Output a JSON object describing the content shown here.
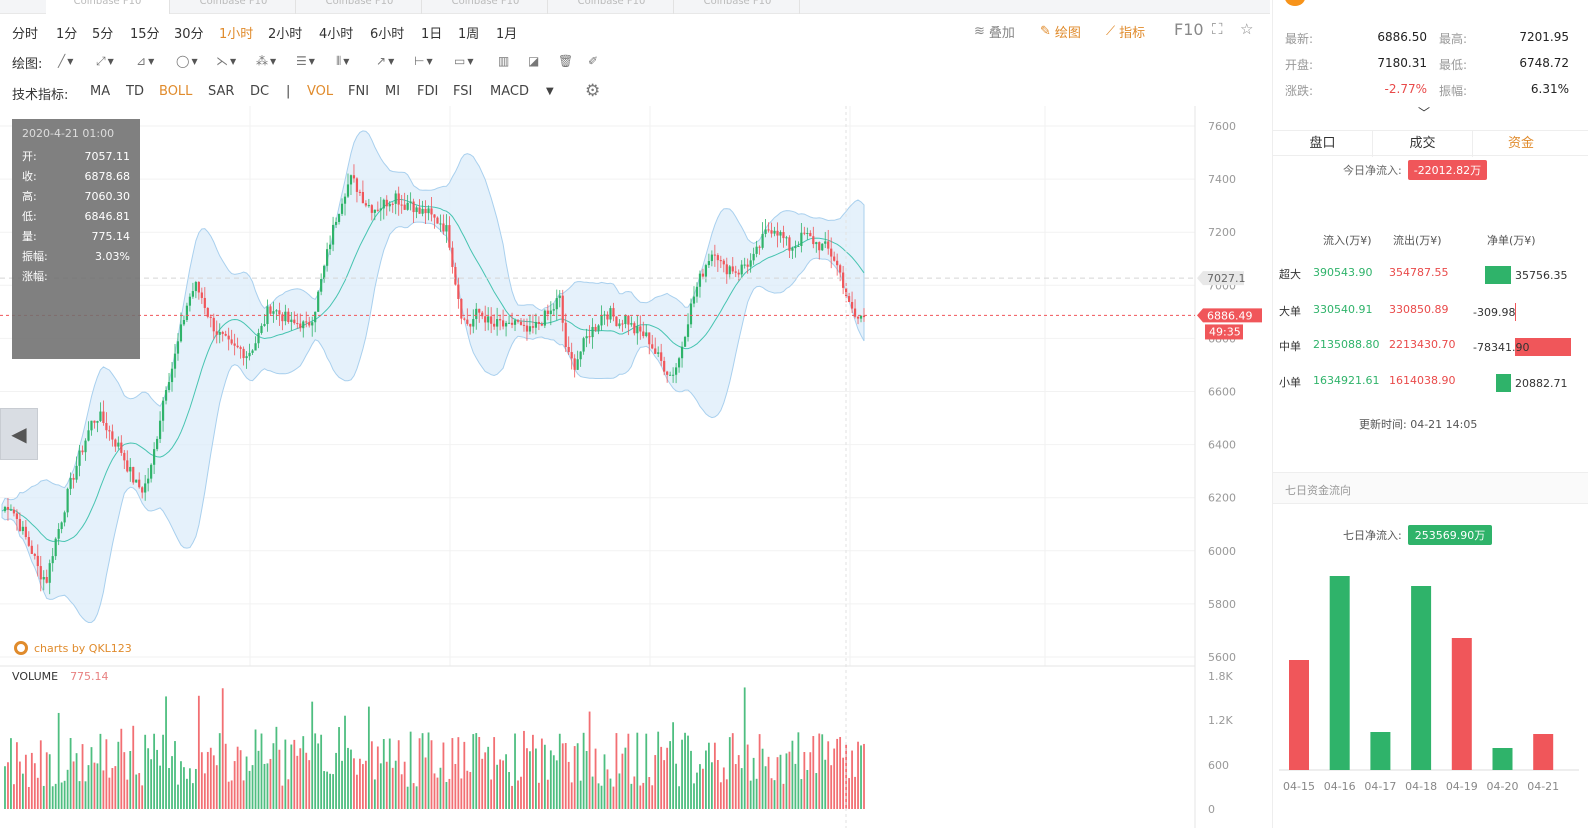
{
  "tabs": [
    {
      "label": "Coinbase F10"
    },
    {
      "label": "Coinbase F10"
    },
    {
      "label": "Coinbase F10"
    },
    {
      "label": "Coinbase F10"
    },
    {
      "label": "Coinbase F10"
    },
    {
      "label": "Coinbase F10"
    }
  ],
  "intervals": [
    {
      "label": "分时"
    },
    {
      "label": "1分"
    },
    {
      "label": "5分"
    },
    {
      "label": "15分"
    },
    {
      "label": "30分"
    },
    {
      "label": "1小时"
    },
    {
      "label": "2小时"
    },
    {
      "label": "4小时"
    },
    {
      "label": "6小时"
    },
    {
      "label": "1日"
    },
    {
      "label": "1周"
    },
    {
      "label": "1月"
    }
  ],
  "active_interval": "1小时",
  "top_right": {
    "overlay": "叠加",
    "draw": "绘图",
    "indicator": "指标",
    "f10": "F10"
  },
  "draw_label": "绘图:",
  "indicators_label": "技术指标:",
  "indicators": [
    {
      "label": "MA"
    },
    {
      "label": "TD"
    },
    {
      "label": "BOLL"
    },
    {
      "label": "SAR"
    },
    {
      "label": "DC"
    },
    {
      "label": "|"
    },
    {
      "label": "VOL"
    },
    {
      "label": "FNI"
    },
    {
      "label": "MI"
    },
    {
      "label": "FDI"
    },
    {
      "label": "FSI"
    },
    {
      "label": "MACD"
    }
  ],
  "infobox": {
    "date": "2020-4-21 01:00",
    "rows": [
      {
        "label": "开:",
        "value": "7057.11"
      },
      {
        "label": "收:",
        "value": "6878.68"
      },
      {
        "label": "高:",
        "value": "7060.30"
      },
      {
        "label": "低:",
        "value": "6846.81"
      },
      {
        "label": "量:",
        "value": "775.14"
      },
      {
        "label": "振幅:",
        "value": "3.03%"
      },
      {
        "label": "涨幅:",
        "value": ""
      }
    ]
  },
  "credit": "charts by QKL123",
  "volume": {
    "label": "VOLUME",
    "value": "775.14"
  },
  "chart_data": {
    "type": "candlestick",
    "y_ticks": [
      "7600",
      "7400",
      "7200",
      "7000",
      "6800",
      "6600",
      "6400",
      "6200",
      "6000",
      "5800",
      "5600"
    ],
    "ylim": [
      5600,
      7600
    ],
    "volume_ticks": [
      "1.8K",
      "1.2K",
      "600",
      "0"
    ],
    "price_markers": {
      "high_line": "7027.1",
      "last": "6886.49",
      "countdown": "49:35"
    },
    "close_path": [
      6150,
      6180,
      6120,
      6060,
      6000,
      5920,
      5890,
      6020,
      6120,
      6230,
      6320,
      6400,
      6480,
      6510,
      6470,
      6420,
      6380,
      6310,
      6250,
      6230,
      6300,
      6460,
      6620,
      6700,
      6820,
      6940,
      7000,
      6950,
      6870,
      6820,
      6790,
      6760,
      6760,
      6740,
      6780,
      6840,
      6920,
      6900,
      6880,
      6850,
      6860,
      6840,
      6900,
      7020,
      7150,
      7260,
      7350,
      7400,
      7360,
      7310,
      7290,
      7300,
      7320,
      7340,
      7300,
      7320,
      7270,
      7280,
      7250,
      7240,
      7200,
      7020,
      6870,
      6850,
      6900,
      6880,
      6840,
      6860,
      6830,
      6870,
      6830,
      6820,
      6850,
      6880,
      6900,
      6960,
      6740,
      6700,
      6760,
      6820,
      6850,
      6900,
      6890,
      6860,
      6880,
      6830,
      6820,
      6800,
      6740,
      6700,
      6660,
      6710,
      6840,
      6950,
      7030,
      7100,
      7140,
      7060,
      7070,
      7050,
      7080,
      7090,
      7150,
      7210,
      7220,
      7180,
      7140,
      7160,
      7190,
      7170,
      7150,
      7140,
      7100,
      7030,
      6920,
      6870,
      6886
    ]
  },
  "quote": {
    "rows": [
      {
        "l1": "最新:",
        "v1": "6886.50",
        "l2": "最高:",
        "v2": "7201.95"
      },
      {
        "l1": "开盘:",
        "v1": "7180.31",
        "l2": "最低:",
        "v2": "6748.72"
      },
      {
        "l1": "涨跌:",
        "v1": "-2.77%",
        "l2": "振幅:",
        "v2": "6.31%"
      }
    ],
    "expand_icon": "chevron-down-icon"
  },
  "right_tabs": [
    {
      "label": "盘口"
    },
    {
      "label": "成交"
    },
    {
      "label": "资金"
    }
  ],
  "active_right_tab": "资金",
  "today_net": {
    "label": "今日净流入:",
    "value": "-22012.82万"
  },
  "flow_headers": {
    "in": "流入(万¥)",
    "out": "流出(万¥)",
    "net": "净单(万¥)"
  },
  "flow_rows": [
    {
      "cat": "超大",
      "in": "390543.90",
      "out": "354787.55",
      "net": "35756.35",
      "sign": "pos",
      "net_value": 35756.35
    },
    {
      "cat": "大单",
      "in": "330540.91",
      "out": "330850.89",
      "net": "-309.98",
      "sign": "neg",
      "net_value": -309.98
    },
    {
      "cat": "中单",
      "in": "2135088.80",
      "out": "2213430.70",
      "net": "-78341.90",
      "sign": "neg",
      "net_value": -78341.9
    },
    {
      "cat": "小单",
      "in": "1634921.61",
      "out": "1614038.90",
      "net": "20882.71",
      "sign": "pos",
      "net_value": 20882.71
    }
  ],
  "update_time": "更新时间: 04-21 14:05",
  "seven_day": {
    "title": "七日资金流向",
    "net_label": "七日净流入:",
    "net_value": "253569.90万"
  },
  "seven_day_chart": {
    "type": "bar",
    "categories": [
      "04-15",
      "04-16",
      "04-17",
      "04-18",
      "04-19",
      "04-20",
      "04-21"
    ],
    "values": [
      55,
      97,
      19,
      92,
      66,
      11,
      18
    ],
    "signs": [
      "neg",
      "pos",
      "pos",
      "pos",
      "neg",
      "pos",
      "neg"
    ]
  },
  "colors": {
    "accent": "#e08b2c",
    "up": "#2fb36a",
    "down": "#f0565a"
  }
}
